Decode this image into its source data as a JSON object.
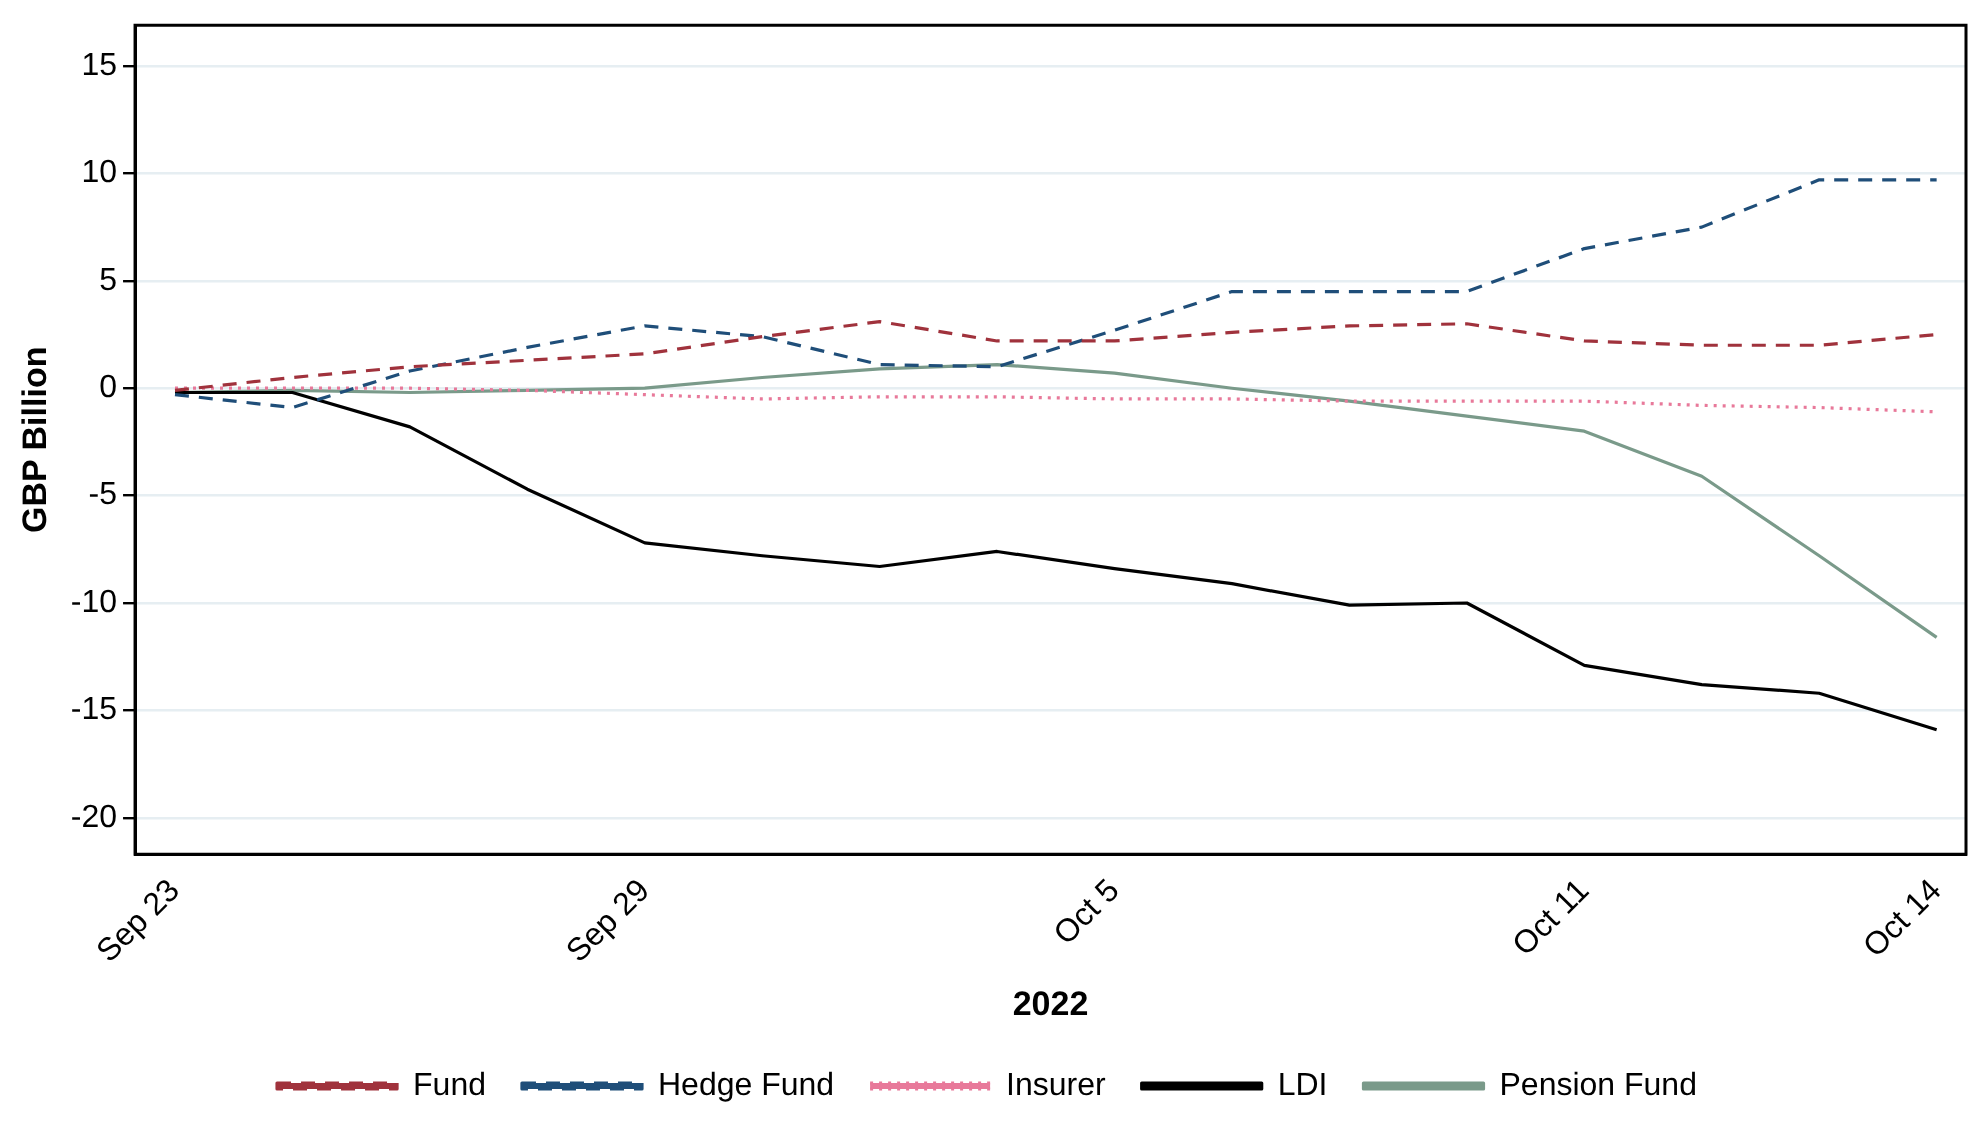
{
  "chart_data": {
    "type": "line",
    "xlabel": "2022",
    "ylabel": "GBP Billion",
    "categories": [
      "Sep 23",
      null,
      null,
      null,
      "Sep 29",
      null,
      null,
      null,
      "Oct 5",
      null,
      null,
      null,
      "Oct 11",
      null,
      null,
      "Oct 14"
    ],
    "series": [
      {
        "name": "Fund",
        "color": "#a0323c",
        "line_style": "dashed",
        "values": [
          -0.1,
          0.5,
          1.0,
          1.3,
          1.6,
          2.4,
          3.1,
          2.2,
          2.2,
          2.6,
          2.9,
          3.0,
          2.2,
          2.0,
          2.0,
          2.5
        ]
      },
      {
        "name": "Hedge Fund",
        "color": "#1f4e79",
        "line_style": "dashed",
        "values": [
          -0.3,
          -0.9,
          0.8,
          1.9,
          2.9,
          2.4,
          1.1,
          1.0,
          2.7,
          4.5,
          4.5,
          4.5,
          6.5,
          7.5,
          9.7,
          9.7
        ]
      },
      {
        "name": "Insurer",
        "color": "#e8799a",
        "line_style": "dotted",
        "values": [
          0,
          0,
          0,
          -0.1,
          -0.3,
          -0.5,
          -0.4,
          -0.4,
          -0.5,
          -0.5,
          -0.6,
          -0.6,
          -0.6,
          -0.8,
          -0.9,
          -1.1
        ]
      },
      {
        "name": "LDI",
        "color": "#000000",
        "line_style": "solid",
        "values": [
          -0.2,
          -0.2,
          -1.8,
          -4.7,
          -7.2,
          -7.8,
          -8.3,
          -7.6,
          -8.4,
          -9.1,
          -10.1,
          -10.0,
          -12.9,
          -13.8,
          -14.2,
          -15.9
        ]
      },
      {
        "name": "Pension Fund",
        "color": "#7a9a8a",
        "line_style": "solid",
        "values": [
          -0.2,
          -0.1,
          -0.2,
          -0.1,
          0.0,
          0.5,
          0.9,
          1.1,
          0.7,
          0.0,
          -0.6,
          -1.3,
          -2.0,
          -4.1,
          -7.8,
          -11.6
        ]
      }
    ],
    "ylim": [
      -21.7,
      16.9
    ],
    "yticks": [
      -20,
      -15,
      -10,
      -5,
      0,
      5,
      10,
      15
    ],
    "grid": "y",
    "legend": "bottom",
    "marker": "none"
  }
}
